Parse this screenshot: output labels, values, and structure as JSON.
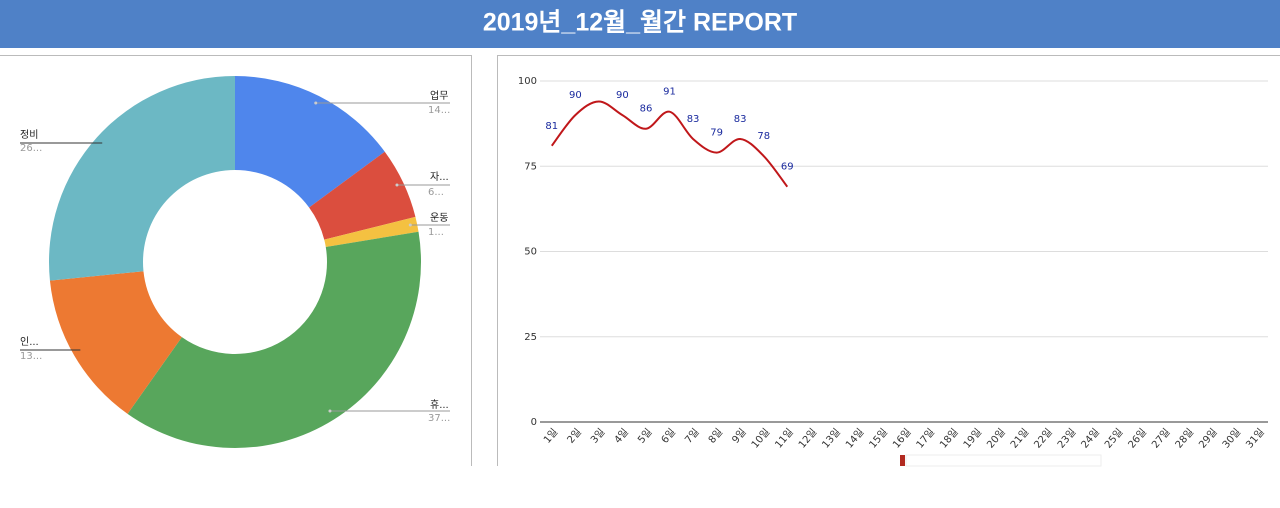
{
  "header": {
    "title": "2019년_12월_월간 REPORT"
  },
  "chart_data": [
    {
      "type": "donut",
      "categories": [
        "업무",
        "자...",
        "운동",
        "휴...",
        "인...",
        "정비"
      ],
      "values": [
        14.9,
        6.2,
        1.3,
        37.4,
        13.6,
        26.6
      ],
      "value_labels": [
        "14...",
        "6...",
        "1...",
        "37...",
        "13...",
        "26..."
      ],
      "colors": [
        "#4f86ec",
        "#db4e3e",
        "#f4c141",
        "#58a65c",
        "#ed7932",
        "#6cb8c4"
      ]
    },
    {
      "type": "line",
      "categories": [
        "1일",
        "2일",
        "3일",
        "4일",
        "5일",
        "6일",
        "7일",
        "8일",
        "9일",
        "10일",
        "11일",
        "12일",
        "13일",
        "14일",
        "15일",
        "16일",
        "17일",
        "18일",
        "19일",
        "20일",
        "21일",
        "22일",
        "23일",
        "24일",
        "25일",
        "26일",
        "27일",
        "28일",
        "29일",
        "30일",
        "31일"
      ],
      "values": [
        81,
        90,
        94,
        90,
        86,
        91,
        83,
        79,
        83,
        78,
        69,
        null,
        null,
        null,
        null,
        null,
        null,
        null,
        null,
        null,
        null,
        null,
        null,
        null,
        null,
        null,
        null,
        null,
        null,
        null,
        null
      ],
      "value_labels": [
        "81",
        "90",
        null,
        "90",
        "86",
        "91",
        "83",
        "79",
        "83",
        "78",
        "69",
        null,
        null,
        null,
        null,
        null,
        null,
        null,
        null,
        null,
        null,
        null,
        null,
        null,
        null,
        null,
        null,
        null,
        null,
        null,
        null
      ],
      "color": "#c0171a",
      "ylim": [
        0,
        100
      ],
      "yticks": [
        0,
        25,
        50,
        75,
        100
      ],
      "grid": true
    }
  ]
}
